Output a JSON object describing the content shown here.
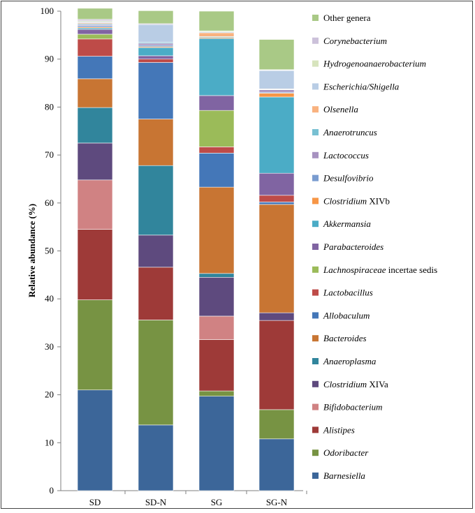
{
  "chart_data": {
    "type": "bar",
    "stacked": true,
    "title": "",
    "xlabel": "",
    "ylabel": "Relative abundance (%)",
    "ylim": [
      0,
      100
    ],
    "yticks": [
      0,
      10,
      20,
      30,
      40,
      50,
      60,
      70,
      80,
      90,
      100
    ],
    "categories": [
      "SD",
      "SD-N",
      "SG",
      "SG-N"
    ],
    "legend_position": "right",
    "series": [
      {
        "name": "Barnesiella",
        "italic": "Barnesiella",
        "plain": "",
        "color": "#3C6699",
        "values": [
          21.0,
          13.7,
          19.7,
          10.8
        ]
      },
      {
        "name": "Odoribacter",
        "italic": "Odoribacter",
        "plain": "",
        "color": "#779343",
        "values": [
          18.8,
          21.9,
          1.1,
          6.1
        ]
      },
      {
        "name": "Alistipes",
        "italic": "Alistipes",
        "plain": "",
        "color": "#9E3A38",
        "values": [
          14.7,
          11.0,
          10.7,
          18.6
        ]
      },
      {
        "name": "Bifidobacterium",
        "italic": "Bifidobacterium",
        "plain": "",
        "color": "#D08283",
        "values": [
          10.3,
          0.0,
          4.9,
          0.0
        ]
      },
      {
        "name": "Clostridium XIVa",
        "italic": "Clostridium",
        "plain": " XIVa",
        "color": "#5E4A7E",
        "values": [
          7.7,
          6.7,
          8.1,
          1.6
        ]
      },
      {
        "name": "Anaeroplasma",
        "italic": "Anaeroplasma",
        "plain": "",
        "color": "#31859C",
        "values": [
          7.4,
          14.5,
          0.8,
          0.0
        ]
      },
      {
        "name": "Bacteroides",
        "italic": "Bacteroides",
        "plain": "",
        "color": "#C87533",
        "values": [
          6.0,
          9.7,
          18.0,
          22.6
        ]
      },
      {
        "name": "Allobaculum",
        "italic": "Allobaculum",
        "plain": "",
        "color": "#4477B8",
        "values": [
          4.7,
          11.8,
          7.1,
          0.5
        ]
      },
      {
        "name": "Lactobacillus",
        "italic": "Lactobacillus",
        "plain": "",
        "color": "#BE4B48",
        "values": [
          3.6,
          0.7,
          1.3,
          1.4
        ]
      },
      {
        "name": "Lachnospiraceae incertae sedis",
        "italic": "Lachnospiraceae",
        "plain": " incertae sedis",
        "color": "#9BBB59",
        "values": [
          1.0,
          0.0,
          7.6,
          0.0
        ]
      },
      {
        "name": "Parabacteroides",
        "italic": "Parabacteroides",
        "plain": "",
        "color": "#8064A2",
        "values": [
          1.0,
          0.7,
          3.1,
          4.6
        ]
      },
      {
        "name": "Akkermansia",
        "italic": "Akkermansia",
        "plain": "",
        "color": "#4BACC6",
        "values": [
          0.3,
          1.7,
          11.9,
          15.9
        ]
      },
      {
        "name": "Clostridium XIVb",
        "italic": "Clostridium",
        "plain": " XIVb",
        "color": "#F79646",
        "values": [
          0.2,
          0.2,
          0.2,
          0.8
        ]
      },
      {
        "name": "Desulfovibrio",
        "italic": "Desulfovibrio",
        "plain": "",
        "color": "#7A9CD0",
        "values": [
          0.3,
          0.3,
          0.0,
          0.2
        ]
      },
      {
        "name": "Lactococcus",
        "italic": "Lactococcus",
        "plain": "",
        "color": "#A792C0",
        "values": [
          0.2,
          0.4,
          0.0,
          0.5
        ]
      },
      {
        "name": "Anaerotruncus",
        "italic": "Anaerotruncus",
        "plain": "",
        "color": "#78C0D2",
        "values": [
          0.2,
          0.2,
          0.2,
          0.1
        ]
      },
      {
        "name": "Olsenella",
        "italic": "Olsenella",
        "plain": "",
        "color": "#F9B27F",
        "values": [
          0.2,
          0.0,
          0.8,
          0.1
        ]
      },
      {
        "name": "Escherichia/Shigella",
        "italic": "Escherichia/Shigella",
        "plain": "",
        "color": "#B9CDE5",
        "values": [
          0.2,
          3.7,
          0.2,
          3.8
        ]
      },
      {
        "name": "Hydrogenoanaerobacterium",
        "italic": "Hydrogenoanaerobacterium",
        "plain": "",
        "color": "#D7E4BD",
        "values": [
          0.2,
          0.0,
          0.2,
          0.1
        ]
      },
      {
        "name": "Corynebacterium",
        "italic": "Corynebacterium",
        "plain": "",
        "color": "#CCC1DA",
        "values": [
          0.3,
          0.2,
          0.0,
          0.1
        ]
      },
      {
        "name": "Other genera",
        "italic": "",
        "plain": "Other genera",
        "color": "#A9C986",
        "values": [
          2.3,
          2.7,
          4.1,
          6.3
        ]
      }
    ]
  }
}
